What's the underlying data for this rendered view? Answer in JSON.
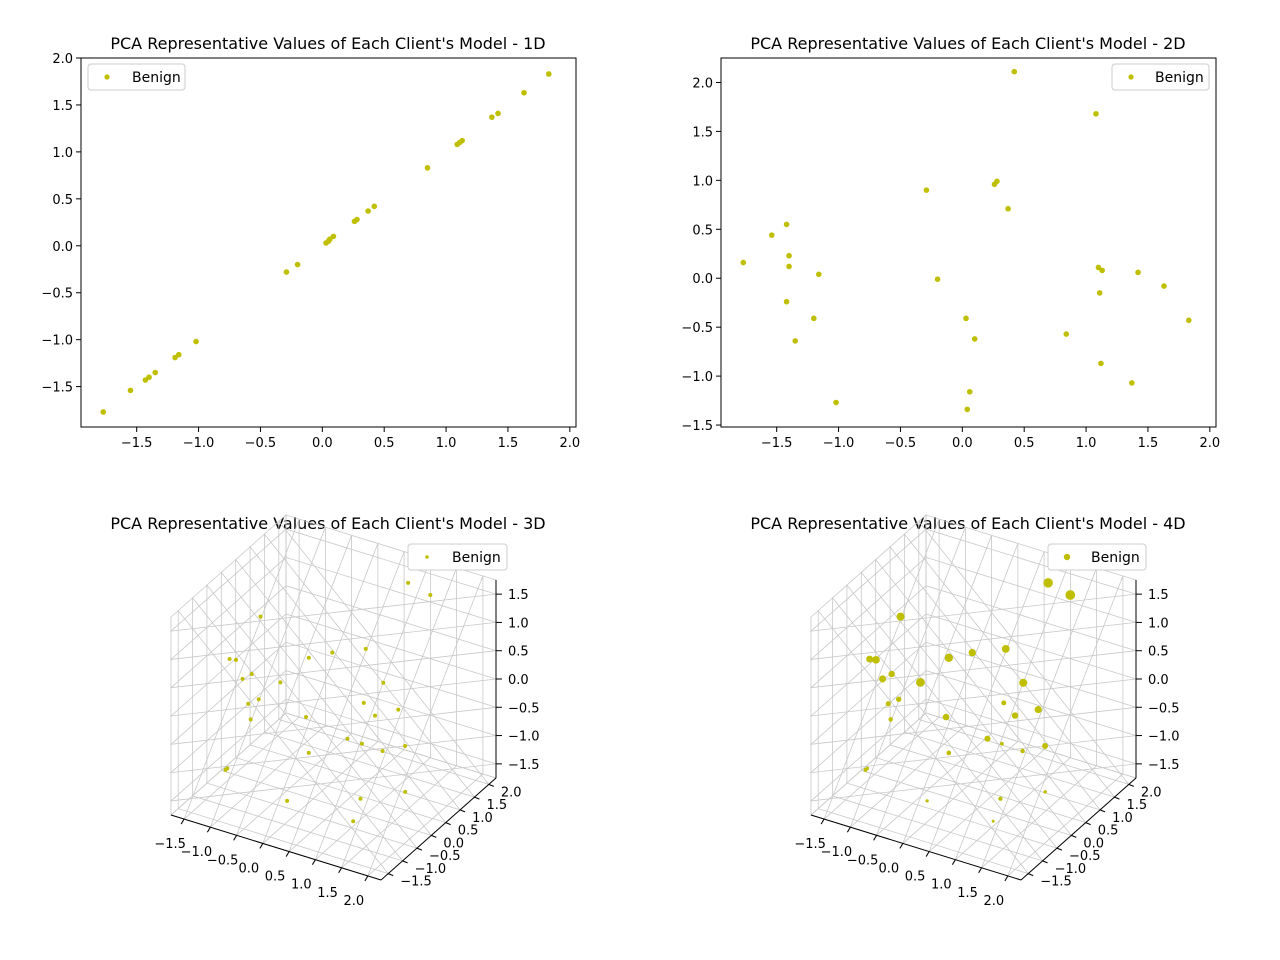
{
  "marker_color": "#bfbf00",
  "chart_data": [
    {
      "type": "scatter",
      "title": "PCA Representative Values of Each Client's Model - 1D",
      "legend": {
        "label": "Benign",
        "placement": "upper-left"
      },
      "xlim": [
        -1.95,
        2.05
      ],
      "ylim": [
        -1.93,
        2.0
      ],
      "xticks": [
        -1.5,
        -1.0,
        -0.5,
        0.0,
        0.5,
        1.0,
        1.5,
        2.0
      ],
      "yticks": [
        -1.5,
        -1.0,
        -0.5,
        0.0,
        0.5,
        1.0,
        1.5,
        2.0
      ],
      "xtick_labels": [
        "−1.5",
        "−1.0",
        "−0.5",
        "0.0",
        "0.5",
        "1.0",
        "1.5",
        "2.0"
      ],
      "ytick_labels": [
        "−1.5",
        "−1.0",
        "−0.5",
        "0.0",
        "0.5",
        "1.0",
        "1.5",
        "2.0"
      ],
      "x": [
        -1.77,
        -1.55,
        -1.43,
        -1.4,
        -1.35,
        -1.19,
        -1.16,
        -1.02,
        -0.29,
        -0.2,
        0.03,
        0.05,
        0.06,
        0.09,
        0.26,
        0.28,
        0.37,
        0.42,
        0.85,
        1.09,
        1.11,
        1.13,
        1.37,
        1.42,
        1.63,
        1.83
      ],
      "y": [
        -1.77,
        -1.54,
        -1.43,
        -1.4,
        -1.35,
        -1.19,
        -1.16,
        -1.02,
        -0.28,
        -0.2,
        0.03,
        0.05,
        0.07,
        0.1,
        0.26,
        0.28,
        0.37,
        0.42,
        0.83,
        1.08,
        1.1,
        1.12,
        1.37,
        1.41,
        1.63,
        1.83
      ]
    },
    {
      "type": "scatter",
      "title": "PCA Representative Values of Each Client's Model - 2D",
      "legend": {
        "label": "Benign",
        "placement": "upper-right"
      },
      "xlim": [
        -1.95,
        2.05
      ],
      "ylim": [
        -1.52,
        2.25
      ],
      "xticks": [
        -1.5,
        -1.0,
        -0.5,
        0.0,
        0.5,
        1.0,
        1.5,
        2.0
      ],
      "yticks": [
        -1.5,
        -1.0,
        -0.5,
        0.0,
        0.5,
        1.0,
        1.5,
        2.0
      ],
      "xtick_labels": [
        "−1.5",
        "−1.0",
        "−0.5",
        "0.0",
        "0.5",
        "1.0",
        "1.5",
        "2.0"
      ],
      "ytick_labels": [
        "−1.5",
        "−1.0",
        "−0.5",
        "0.0",
        "0.5",
        "1.0",
        "1.5",
        "2.0"
      ],
      "x": [
        -1.77,
        -1.54,
        -1.42,
        -1.4,
        -1.4,
        -1.42,
        -1.35,
        -1.2,
        -1.16,
        -1.02,
        -0.29,
        -0.2,
        0.03,
        0.04,
        0.06,
        0.1,
        0.26,
        0.28,
        0.37,
        0.42,
        0.84,
        1.08,
        1.1,
        1.11,
        1.12,
        1.13,
        1.37,
        1.42,
        1.63,
        1.83
      ],
      "y": [
        0.16,
        0.44,
        0.55,
        0.23,
        0.12,
        -0.24,
        -0.64,
        -0.41,
        0.04,
        -1.27,
        0.9,
        -0.01,
        -0.41,
        -1.34,
        -1.16,
        -0.62,
        0.96,
        0.99,
        0.71,
        2.11,
        -0.57,
        1.68,
        0.11,
        -0.15,
        -0.87,
        0.08,
        -1.07,
        0.06,
        -0.08,
        -0.43
      ]
    },
    {
      "type": "scatter3d",
      "title": "PCA Representative Values of Each Client's Model - 3D",
      "legend": {
        "label": "Benign",
        "placement": "upper-right"
      },
      "x_tick_labels": [
        "−1.5",
        "−1.0",
        "−0.5",
        "0.0",
        "0.5",
        "1.0",
        "1.5",
        "2.0"
      ],
      "y_tick_labels": [
        "−1.5",
        "−1.0",
        "−0.5",
        "0.0",
        "0.5",
        "1.0",
        "1.5",
        "2.0"
      ],
      "z_tick_labels": [
        "−1.5",
        "−1.0",
        "−0.5",
        "0.0",
        "0.5",
        "1.0",
        "1.5"
      ],
      "xlim": [
        -1.9,
        2.0
      ],
      "ylim": [
        -1.5,
        2.2
      ],
      "zlim": [
        -1.8,
        1.9
      ],
      "x": [
        -1.77,
        -1.54,
        -1.42,
        -1.4,
        -1.4,
        -1.42,
        -1.35,
        -1.2,
        -1.16,
        -1.02,
        -0.29,
        -0.2,
        0.03,
        0.04,
        0.06,
        0.1,
        0.26,
        0.28,
        0.37,
        0.42,
        0.84,
        1.08,
        1.1,
        1.11,
        1.12,
        1.13,
        1.37,
        1.42,
        1.63,
        1.83
      ],
      "y": [
        0.16,
        0.44,
        0.55,
        0.23,
        0.12,
        -0.24,
        -0.64,
        -0.41,
        0.04,
        -1.27,
        0.9,
        -0.01,
        -0.41,
        -1.34,
        -1.16,
        -0.62,
        0.96,
        0.99,
        0.71,
        2.11,
        -0.57,
        1.68,
        0.11,
        -0.15,
        -0.87,
        0.08,
        -1.07,
        0.06,
        -0.08,
        -0.43
      ],
      "z": [
        0.3,
        -0.9,
        1.0,
        0.1,
        -0.4,
        0.6,
        -1.2,
        0.4,
        -0.2,
        -0.8,
        0.5,
        0.9,
        -0.6,
        1.2,
        -1.1,
        0.2,
        -0.3,
        0.7,
        -0.9,
        1.4,
        0.0,
        1.6,
        -0.5,
        0.3,
        -1.3,
        0.8,
        -0.7,
        0.4,
        -1.0,
        0.1
      ]
    },
    {
      "type": "scatter3d",
      "title": "PCA Representative Values of Each Client's Model - 4D",
      "legend": {
        "label": "Benign",
        "placement": "upper-right"
      },
      "x_tick_labels": [
        "−1.5",
        "−1.0",
        "−0.5",
        "0.0",
        "0.5",
        "1.0",
        "1.5",
        "2.0"
      ],
      "y_tick_labels": [
        "−1.5",
        "−1.0",
        "−0.5",
        "0.0",
        "0.5",
        "1.0",
        "1.5",
        "2.0"
      ],
      "z_tick_labels": [
        "−1.5",
        "−1.0",
        "−0.5",
        "0.0",
        "0.5",
        "1.0",
        "1.5"
      ],
      "xlim": [
        -1.9,
        2.0
      ],
      "ylim": [
        -1.5,
        2.2
      ],
      "zlim": [
        -1.8,
        1.9
      ],
      "x": [
        -1.77,
        -1.54,
        -1.42,
        -1.4,
        -1.4,
        -1.42,
        -1.35,
        -1.2,
        -1.16,
        -1.02,
        -0.29,
        -0.2,
        0.03,
        0.04,
        0.06,
        0.1,
        0.26,
        0.28,
        0.37,
        0.42,
        0.84,
        1.08,
        1.1,
        1.11,
        1.12,
        1.13,
        1.37,
        1.42,
        1.63,
        1.83
      ],
      "y": [
        0.16,
        0.44,
        0.55,
        0.23,
        0.12,
        -0.24,
        -0.64,
        -0.41,
        0.04,
        -1.27,
        0.9,
        -0.01,
        -0.41,
        -1.34,
        -1.16,
        -0.62,
        0.96,
        0.99,
        0.71,
        2.11,
        -0.57,
        1.68,
        0.11,
        -0.15,
        -0.87,
        0.08,
        -1.07,
        0.06,
        -0.08,
        -0.43
      ],
      "z": [
        0.3,
        -0.9,
        1.0,
        0.1,
        -0.4,
        0.6,
        -1.2,
        0.4,
        -0.2,
        -0.8,
        0.5,
        0.9,
        -0.6,
        1.2,
        -1.1,
        0.2,
        -0.3,
        0.7,
        -0.9,
        1.4,
        0.0,
        1.6,
        -0.5,
        0.3,
        -1.3,
        0.8,
        -0.7,
        0.4,
        -1.0,
        0.1
      ],
      "size_value": [
        0.4,
        -0.6,
        0.9,
        0.2,
        -0.3,
        0.7,
        -1.0,
        0.5,
        -0.2,
        -0.8,
        0.6,
        1.0,
        -0.5,
        1.2,
        -1.1,
        0.3,
        -0.4,
        0.8,
        -0.9,
        1.5,
        0.1,
        1.6,
        -0.6,
        0.2,
        -1.2,
        0.9,
        -0.7,
        0.5,
        -1.0,
        0.0
      ]
    }
  ]
}
